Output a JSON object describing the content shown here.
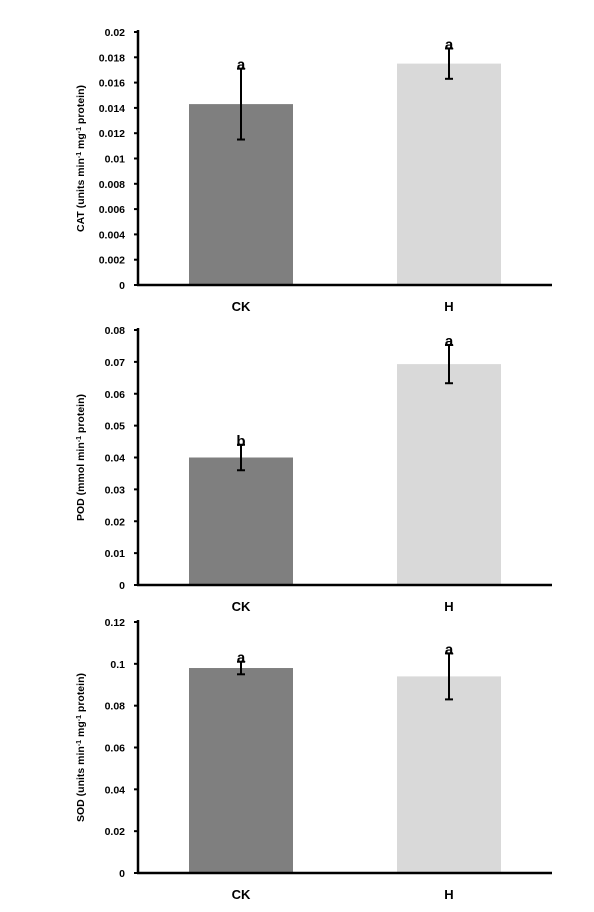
{
  "colors": {
    "CK": "#7f7f7f",
    "H": "#d9d9d9",
    "axis": "#000000"
  },
  "chart_data": [
    {
      "type": "bar",
      "categories": [
        "CK",
        "H"
      ],
      "values": [
        0.0143,
        0.0175
      ],
      "errors": [
        0.0028,
        0.0012
      ],
      "significance": [
        "a",
        "a"
      ],
      "ylabel_parts": [
        "CAT (units min",
        "-1",
        " mg",
        "-1",
        " protein)"
      ],
      "ylim": [
        0,
        0.02
      ],
      "yticks": [
        "0",
        "0.002",
        "0.004",
        "0.006",
        "0.008",
        "0.01",
        "0.012",
        "0.014",
        "0.016",
        "0.018",
        "0.02"
      ],
      "grid": false
    },
    {
      "type": "bar",
      "categories": [
        "CK",
        "H"
      ],
      "values": [
        0.04,
        0.0693
      ],
      "errors": [
        0.004,
        0.006
      ],
      "significance": [
        "b",
        "a"
      ],
      "ylabel_parts": [
        "POD (mmol min",
        "-1",
        " protein)"
      ],
      "ylim": [
        0,
        0.08
      ],
      "yticks": [
        "0",
        "0.01",
        "0.02",
        "0.03",
        "0.04",
        "0.05",
        "0.06",
        "0.07",
        "0.08"
      ],
      "grid": false
    },
    {
      "type": "bar",
      "categories": [
        "CK",
        "H"
      ],
      "values": [
        0.098,
        0.094
      ],
      "errors": [
        0.003,
        0.011
      ],
      "significance": [
        "a",
        "a"
      ],
      "ylabel_parts": [
        "SOD (units min",
        "-1",
        " mg",
        "-1",
        " protein)"
      ],
      "ylim": [
        0,
        0.12
      ],
      "yticks": [
        "0",
        "0.02",
        "0.04",
        "0.06",
        "0.08",
        "0.1",
        "0.12"
      ],
      "grid": false
    }
  ]
}
